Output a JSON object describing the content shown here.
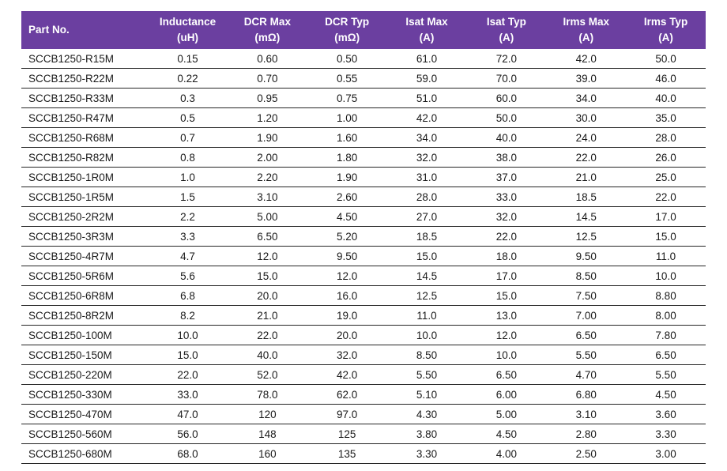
{
  "colors": {
    "header_bg": "#6B3FA0",
    "header_text": "#FFFFFF",
    "row_border": "#262626",
    "body_text": "#1A1A1A"
  },
  "table": {
    "columns": [
      {
        "label": "Part No.",
        "unit": ""
      },
      {
        "label": "Inductance",
        "unit": "(uH)"
      },
      {
        "label": "DCR Max",
        "unit": "(mΩ)"
      },
      {
        "label": "DCR Typ",
        "unit": "(mΩ)"
      },
      {
        "label": "Isat Max",
        "unit": "(A)"
      },
      {
        "label": "Isat Typ",
        "unit": "(A)"
      },
      {
        "label": "Irms Max",
        "unit": "(A)"
      },
      {
        "label": "Irms Typ",
        "unit": "(A)"
      }
    ],
    "rows": [
      [
        "SCCB1250-R15M",
        "0.15",
        "0.60",
        "0.50",
        "61.0",
        "72.0",
        "42.0",
        "50.0"
      ],
      [
        "SCCB1250-R22M",
        "0.22",
        "0.70",
        "0.55",
        "59.0",
        "70.0",
        "39.0",
        "46.0"
      ],
      [
        "SCCB1250-R33M",
        "0.3",
        "0.95",
        "0.75",
        "51.0",
        "60.0",
        "34.0",
        "40.0"
      ],
      [
        "SCCB1250-R47M",
        "0.5",
        "1.20",
        "1.00",
        "42.0",
        "50.0",
        "30.0",
        "35.0"
      ],
      [
        "SCCB1250-R68M",
        "0.7",
        "1.90",
        "1.60",
        "34.0",
        "40.0",
        "24.0",
        "28.0"
      ],
      [
        "SCCB1250-R82M",
        "0.8",
        "2.00",
        "1.80",
        "32.0",
        "38.0",
        "22.0",
        "26.0"
      ],
      [
        "SCCB1250-1R0M",
        "1.0",
        "2.20",
        "1.90",
        "31.0",
        "37.0",
        "21.0",
        "25.0"
      ],
      [
        "SCCB1250-1R5M",
        "1.5",
        "3.10",
        "2.60",
        "28.0",
        "33.0",
        "18.5",
        "22.0"
      ],
      [
        "SCCB1250-2R2M",
        "2.2",
        "5.00",
        "4.50",
        "27.0",
        "32.0",
        "14.5",
        "17.0"
      ],
      [
        "SCCB1250-3R3M",
        "3.3",
        "6.50",
        "5.20",
        "18.5",
        "22.0",
        "12.5",
        "15.0"
      ],
      [
        "SCCB1250-4R7M",
        "4.7",
        "12.0",
        "9.50",
        "15.0",
        "18.0",
        "9.50",
        "11.0"
      ],
      [
        "SCCB1250-5R6M",
        "5.6",
        "15.0",
        "12.0",
        "14.5",
        "17.0",
        "8.50",
        "10.0"
      ],
      [
        "SCCB1250-6R8M",
        "6.8",
        "20.0",
        "16.0",
        "12.5",
        "15.0",
        "7.50",
        "8.80"
      ],
      [
        "SCCB1250-8R2M",
        "8.2",
        "21.0",
        "19.0",
        "11.0",
        "13.0",
        "7.00",
        "8.00"
      ],
      [
        "SCCB1250-100M",
        "10.0",
        "22.0",
        "20.0",
        "10.0",
        "12.0",
        "6.50",
        "7.80"
      ],
      [
        "SCCB1250-150M",
        "15.0",
        "40.0",
        "32.0",
        "8.50",
        "10.0",
        "5.50",
        "6.50"
      ],
      [
        "SCCB1250-220M",
        "22.0",
        "52.0",
        "42.0",
        "5.50",
        "6.50",
        "4.70",
        "5.50"
      ],
      [
        "SCCB1250-330M",
        "33.0",
        "78.0",
        "62.0",
        "5.10",
        "6.00",
        "6.80",
        "4.50"
      ],
      [
        "SCCB1250-470M",
        "47.0",
        "120",
        "97.0",
        "4.30",
        "5.00",
        "3.10",
        "3.60"
      ],
      [
        "SCCB1250-560M",
        "56.0",
        "148",
        "125",
        "3.80",
        "4.50",
        "2.80",
        "3.30"
      ],
      [
        "SCCB1250-680M",
        "68.0",
        "160",
        "135",
        "3.30",
        "4.00",
        "2.50",
        "3.00"
      ]
    ]
  }
}
